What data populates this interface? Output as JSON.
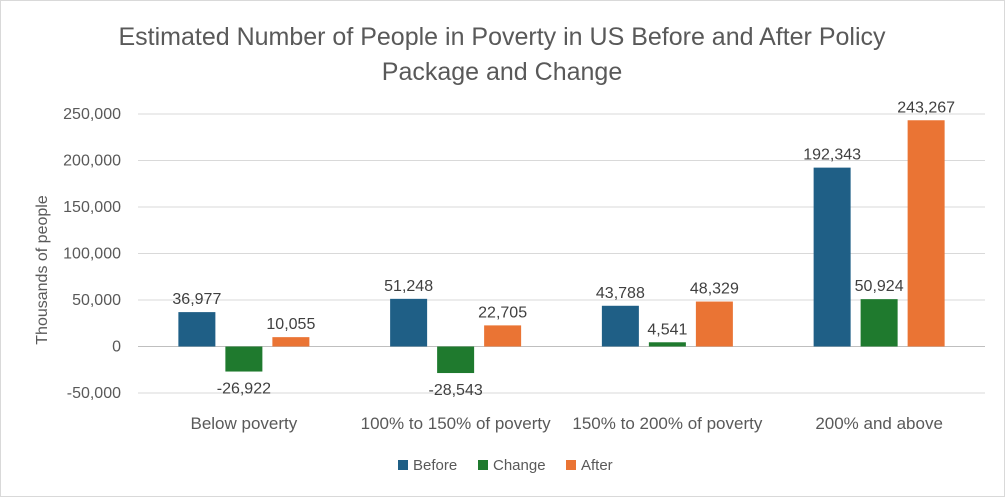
{
  "chart_data": {
    "type": "bar",
    "title_line1": "Estimated Number of People in Poverty in US Before and After Policy",
    "title_line2": "Package and Change",
    "ylabel": "Thousands of people",
    "xlabel": "",
    "categories": [
      "Below poverty",
      "100% to 150% of poverty",
      "150% to 200% of poverty",
      "200% and above"
    ],
    "series": [
      {
        "name": "Before",
        "color": "#1f5f86",
        "values": [
          36977,
          51248,
          43788,
          192343
        ],
        "labels": [
          "36,977",
          "51,248",
          "43,788",
          "192,343"
        ]
      },
      {
        "name": "Change",
        "color": "#1f7a2e",
        "values": [
          -26922,
          -28543,
          4541,
          50924
        ],
        "labels": [
          "-26,922",
          "-28,543",
          "4,541",
          "50,924"
        ]
      },
      {
        "name": "After",
        "color": "#ea7434",
        "values": [
          10055,
          22705,
          48329,
          243267
        ],
        "labels": [
          "10,055",
          "22,705",
          "48,329",
          "243,267"
        ]
      }
    ],
    "ylim": [
      -50000,
      250000
    ],
    "yticks": [
      -50000,
      0,
      50000,
      100000,
      150000,
      200000,
      250000
    ],
    "ytick_labels": [
      "-50,000",
      "0",
      "50,000",
      "100,000",
      "150,000",
      "200,000",
      "250,000"
    ],
    "grid": true,
    "legend_position": "bottom"
  }
}
